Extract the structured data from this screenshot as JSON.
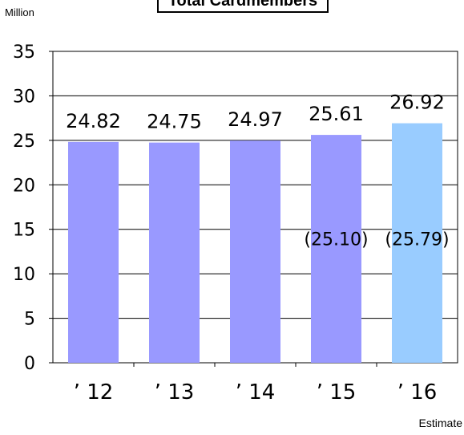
{
  "chart_data": {
    "type": "bar",
    "title": "Total Cardmembers",
    "unit_label": "Million",
    "categories": [
      "’ 12",
      "’ 13",
      "’ 14",
      "’ 15",
      "’ 16"
    ],
    "values": [
      24.82,
      24.75,
      24.97,
      25.61,
      26.92
    ],
    "value_labels": [
      "24.82",
      "24.75",
      "24.97",
      "25.61",
      "26.92"
    ],
    "inner_labels": [
      "",
      "",
      "",
      "(25.10)",
      "(25.79)"
    ],
    "yticks": [
      "0",
      "5",
      "10",
      "15",
      "20",
      "25",
      "30",
      "35"
    ],
    "ylim": [
      0,
      35
    ],
    "grid": true,
    "note": "Estimate",
    "colors": {
      "bar": "#9999ff",
      "bar_estimate": "#99ccff",
      "text": "#000000"
    }
  }
}
